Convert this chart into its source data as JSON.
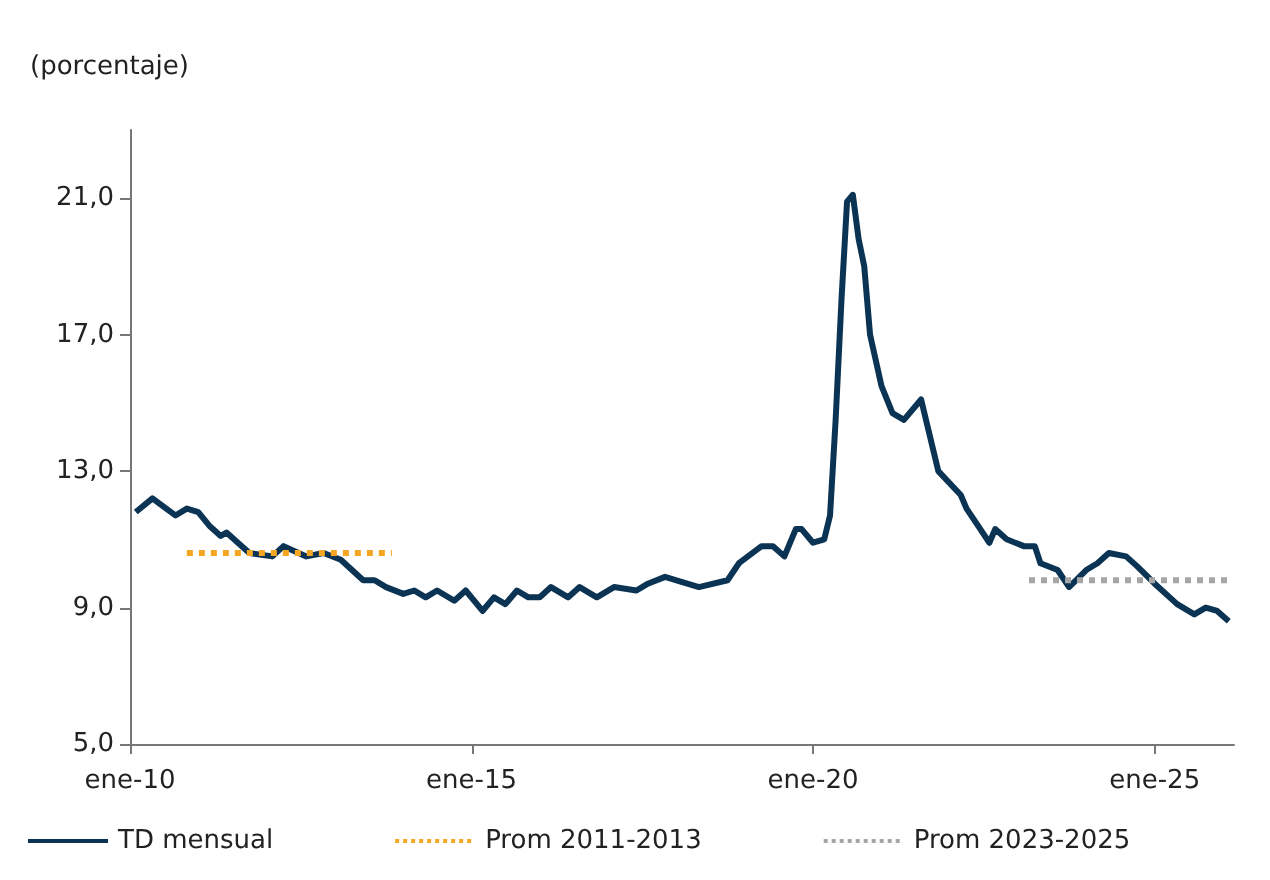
{
  "chart_data": {
    "type": "line",
    "ylabel": "(porcentaje)",
    "xlim": [
      "2010-01",
      "2026-03"
    ],
    "xticks": [
      {
        "value": "2010-01",
        "label": "ene-10"
      },
      {
        "value": "2015-01",
        "label": "ene-15"
      },
      {
        "value": "2020-01",
        "label": "ene-20"
      },
      {
        "value": "2025-01",
        "label": "ene-25"
      }
    ],
    "ylim": [
      5,
      23
    ],
    "yticks": [
      {
        "value": 5,
        "label": "5,0"
      },
      {
        "value": 9,
        "label": "9,0"
      },
      {
        "value": 13,
        "label": "13,0"
      },
      {
        "value": 17,
        "label": "17,0"
      },
      {
        "value": 21,
        "label": "21,0"
      }
    ],
    "grid": false,
    "legend": "bottom",
    "marker": "none",
    "series": [
      {
        "name": "TD mensual",
        "color": "#0b3454",
        "line_style": "solid",
        "x": [
          "2010-02",
          "2010-05",
          "2010-09",
          "2010-11",
          "2011-01",
          "2011-03",
          "2011-05",
          "2011-06",
          "2011-10",
          "2012-02",
          "2012-04",
          "2012-08",
          "2012-11",
          "2013-02",
          "2013-06",
          "2013-08",
          "2013-10",
          "2014-01",
          "2014-03",
          "2014-05",
          "2014-07",
          "2014-10",
          "2014-12",
          "2015-03",
          "2015-05",
          "2015-07",
          "2015-09",
          "2015-11",
          "2016-01",
          "2016-03",
          "2016-06",
          "2016-08",
          "2016-11",
          "2017-02",
          "2017-06",
          "2017-08",
          "2017-11",
          "2018-01",
          "2018-05",
          "2018-10",
          "2018-12",
          "2019-04",
          "2019-06",
          "2019-08",
          "2019-10",
          "2019-11",
          "2020-01",
          "2020-03",
          "2020-04",
          "2020-05",
          "2020-06",
          "2020-07",
          "2020-08",
          "2020-09",
          "2020-10",
          "2020-11",
          "2021-01",
          "2021-03",
          "2021-05",
          "2021-08",
          "2021-11",
          "2022-03",
          "2022-04",
          "2022-06",
          "2022-08",
          "2022-09",
          "2022-11",
          "2023-02",
          "2023-04",
          "2023-05",
          "2023-08",
          "2023-10",
          "2024-01",
          "2024-03",
          "2024-05",
          "2024-08",
          "2024-10",
          "2025-01",
          "2025-05",
          "2025-08",
          "2025-10",
          "2025-12",
          "2026-02"
        ],
        "values": [
          11.8,
          12.2,
          11.7,
          11.9,
          11.8,
          11.4,
          11.1,
          11.2,
          10.6,
          10.5,
          10.8,
          10.5,
          10.6,
          10.4,
          9.8,
          9.8,
          9.6,
          9.4,
          9.5,
          9.3,
          9.5,
          9.2,
          9.5,
          8.9,
          9.3,
          9.1,
          9.5,
          9.3,
          9.3,
          9.6,
          9.3,
          9.6,
          9.3,
          9.6,
          9.5,
          9.7,
          9.9,
          9.8,
          9.6,
          9.8,
          10.3,
          10.8,
          10.8,
          10.5,
          11.3,
          11.3,
          10.9,
          11.0,
          11.7,
          14.5,
          18.0,
          20.9,
          21.1,
          19.8,
          19.0,
          17.0,
          15.5,
          14.7,
          14.5,
          15.1,
          13.0,
          12.3,
          11.9,
          11.4,
          10.9,
          11.3,
          11.0,
          10.8,
          10.8,
          10.3,
          10.1,
          9.6,
          10.1,
          10.3,
          10.6,
          10.5,
          10.2,
          9.7,
          9.1,
          8.8,
          9.0,
          8.9,
          8.6
        ]
      },
      {
        "name": "Prom 2011-2013",
        "color": "#f5a623",
        "line_style": "dotted",
        "x": [
          "2010-11",
          "2013-11"
        ],
        "values": [
          10.6,
          10.6
        ]
      },
      {
        "name": "Prom 2023-2025",
        "color": "#a6a6a6",
        "line_style": "dotted",
        "x": [
          "2023-03",
          "2026-02"
        ],
        "values": [
          9.8,
          9.8
        ]
      }
    ]
  }
}
